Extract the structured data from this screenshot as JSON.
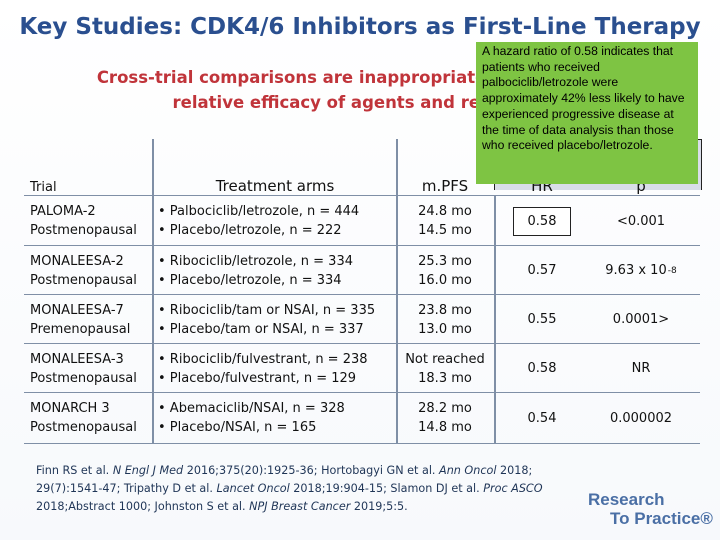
{
  "title": "Key Studies: CDK4/6 Inhibitors as First-Line Therapy",
  "subtitle_line1": "Cross-trial comparisons are inappropriate for evaluating",
  "subtitle_line2": "relative efficacy of agents and regimens",
  "callout": "A hazard ratio of 0.58 indicates that patients who received palbociclib/letrozole were approximately 42% less likely to have experienced progressive disease at the time of data analysis than those who received placebo/letrozole.",
  "table": {
    "headers": {
      "trial": "Trial",
      "arms": "Treatment arms",
      "mpfs": "m.PFS",
      "hr": "HR",
      "p": "p"
    },
    "rows": [
      {
        "trial": [
          "PALOMA-2",
          "Postmenopausal"
        ],
        "arms": [
          "• Palbociclib/letrozole, n = 444",
          "• Placebo/letrozole, n = 222"
        ],
        "mpfs": [
          "24.8 mo",
          "14.5 mo"
        ],
        "hr": "0.58",
        "p": "<0.001"
      },
      {
        "trial": [
          "MONALEESA-2",
          "Postmenopausal"
        ],
        "arms": [
          "• Ribociclib/letrozole, n = 334",
          "• Placebo/letrozole, n = 334"
        ],
        "mpfs": [
          "25.3 mo",
          "16.0 mo"
        ],
        "hr": "0.57",
        "p": "9.63 x 10",
        "p_exp": "-8"
      },
      {
        "trial": [
          "MONALEESA-7",
          "Premenopausal"
        ],
        "arms": [
          "• Ribociclib/tam or NSAI, n = 335",
          "• Placebo/tam or NSAI, n = 337"
        ],
        "mpfs": [
          "23.8 mo",
          "13.0 mo"
        ],
        "hr": "0.55",
        "p": "0.0001>"
      },
      {
        "trial": [
          "MONALEESA-3",
          "Postmenopausal"
        ],
        "arms": [
          "• Ribociclib/fulvestrant, n = 238",
          "• Placebo/fulvestrant, n = 129"
        ],
        "mpfs": [
          "Not reached",
          "18.3 mo"
        ],
        "hr": "0.58",
        "p": "NR"
      },
      {
        "trial": [
          "MONARCH 3",
          "Postmenopausal"
        ],
        "arms": [
          "• Abemaciclib/NSAI, n = 328",
          "• Placebo/NSAI, n = 165"
        ],
        "mpfs": [
          "28.2 mo",
          "14.8 mo"
        ],
        "hr": "0.54",
        "p": "0.000002"
      }
    ]
  },
  "references": {
    "r1_pre": "Finn RS et al. ",
    "r1_j": "N Engl J Med",
    "r1_post": " 2016;375(20):1925-36; Hortobagyi GN et al. ",
    "r2_j": "Ann Oncol",
    "r2_post": " 2018;",
    "r3_pre": "29(7):1541-47; Tripathy D et al. ",
    "r3_j": "Lancet Oncol",
    "r3_post": " 2018;19:904-15; Slamon DJ et al. ",
    "r4_j": "Proc ASCO",
    "r5_pre": "2018;Abstract 1000; Johnston S et al. ",
    "r5_j": "NPJ Breast Cancer",
    "r5_post": " 2019;5:5."
  },
  "logo": {
    "line1": "Research",
    "line2": "To Practice®"
  }
}
